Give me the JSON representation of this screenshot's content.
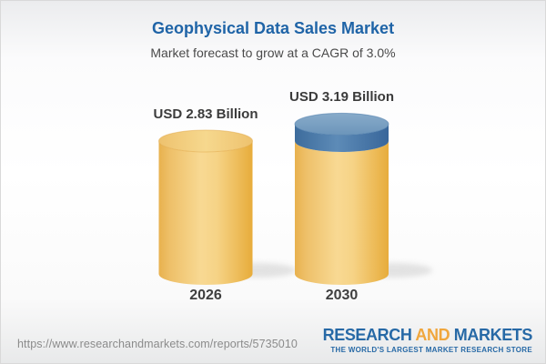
{
  "header": {
    "title": "Geophysical Data Sales Market",
    "subtitle": "Market forecast to grow at a CAGR of 3.0%"
  },
  "chart_data": {
    "type": "bar",
    "variant": "3d-cylinder",
    "categories": [
      "2026",
      "2030"
    ],
    "values": [
      2.83,
      3.19
    ],
    "value_labels": [
      "USD 2.83 Billion",
      "USD 3.19 Billion"
    ],
    "unit": "USD Billion",
    "cagr_pct": 3.0,
    "ylim": [
      0,
      3.5
    ],
    "grid": false,
    "legend": false,
    "growth_cap_on": "2030",
    "growth_cap_from": 2.83,
    "colors": {
      "gold_edge": "#e8b14e",
      "gold_light": "#f8d993",
      "gold_dark": "#e7ac3b",
      "gold_top_light": "#f6d88e",
      "gold_top_edge": "#eec26e",
      "blue_edge": "#3d6c9c",
      "blue_light": "#5d8bb7",
      "blue_dark": "#38669a",
      "blue_top_light": "#88abca",
      "blue_top_dark": "#6c95ba",
      "label_text": "#3b3b3b",
      "title_blue": "#1f64a7"
    }
  },
  "footer": {
    "url": "https://www.researchandmarkets.com/reports/5735010",
    "logo": {
      "word1": "RESEARCH",
      "word2": "AND",
      "word3": "MARKETS",
      "tagline": "THE WORLD'S LARGEST MARKET RESEARCH STORE",
      "blue": "#2769a6",
      "orange": "#f0a63c"
    }
  }
}
